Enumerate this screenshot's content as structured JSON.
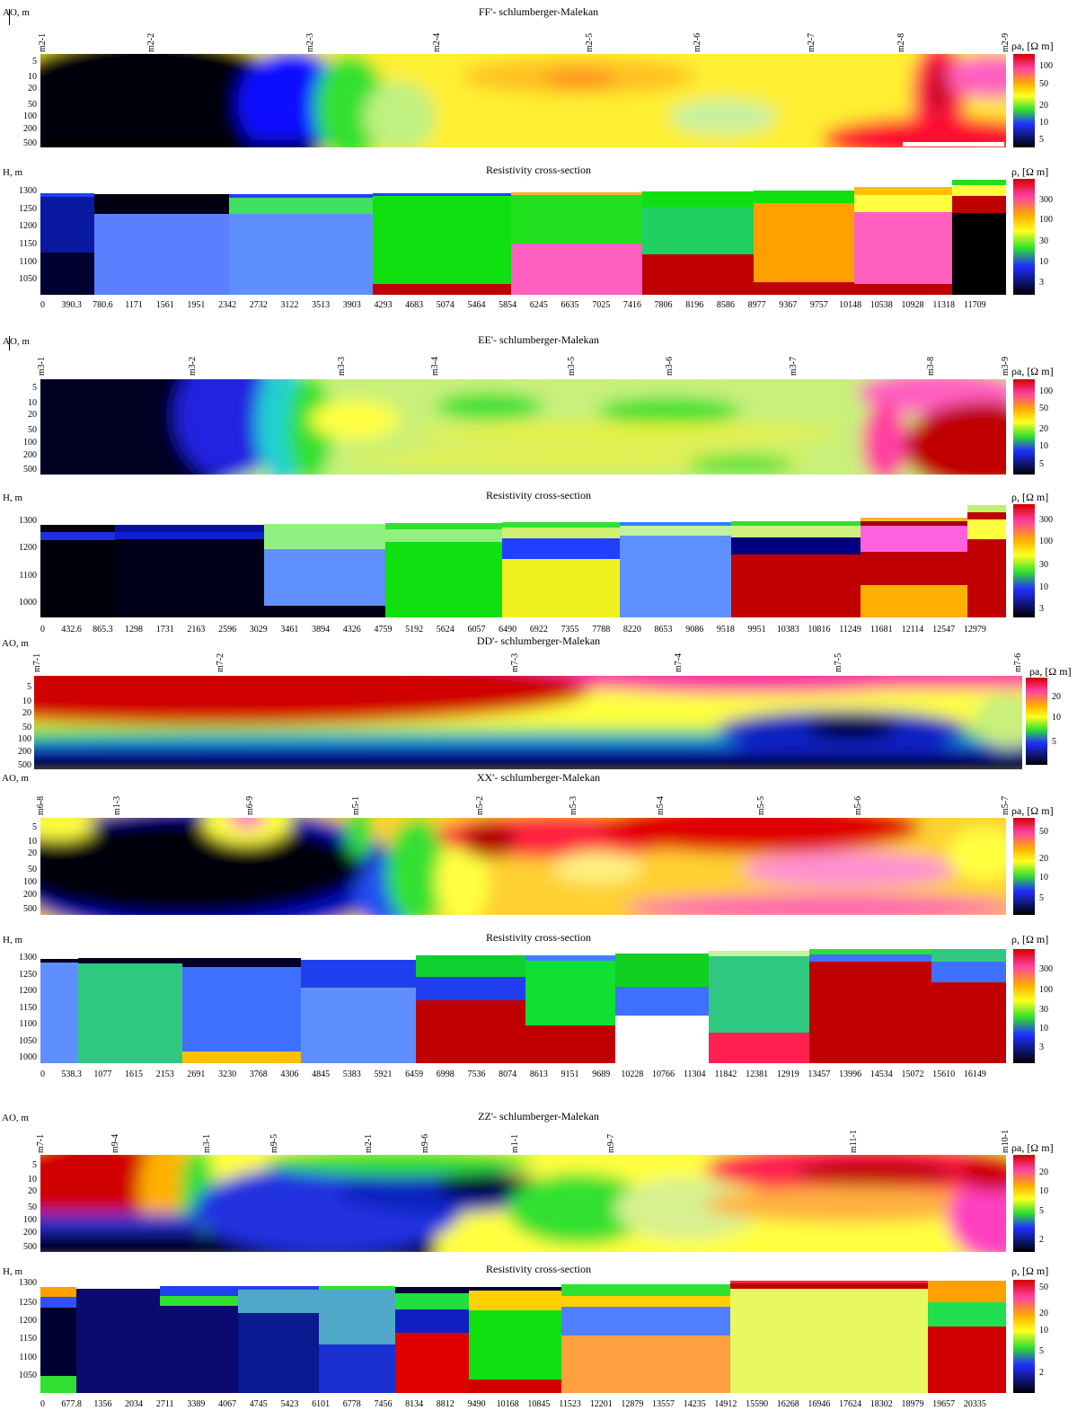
{
  "panels": {
    "ff": {
      "title": "FF'- schlumberger-Malekan",
      "y_label": "AO, m",
      "colorbar_label": "ρa, [Ω m]",
      "y_ticks": [
        "5",
        "10",
        "20",
        "50",
        "100",
        "200",
        "500"
      ],
      "stations": [
        "m2-1",
        "m2-2",
        "m2-3",
        "m2-4",
        "m2-5",
        "m2-6",
        "m2-7",
        "m2-8",
        "m2-9"
      ],
      "colorbar_ticks": [
        "100",
        "50",
        "20",
        "10",
        "5"
      ]
    },
    "ff_section": {
      "title": "Resistivity cross-section",
      "y_label": "H, m",
      "colorbar_label": "ρ, [Ω m]",
      "y_ticks": [
        "1300",
        "1250",
        "1200",
        "1150",
        "1100",
        "1050"
      ],
      "x_ticks": [
        "0",
        "390.3",
        "780.6",
        "1171",
        "1561",
        "1951",
        "2342",
        "2732",
        "3122",
        "3513",
        "3903",
        "4293",
        "4683",
        "5074",
        "5464",
        "5854",
        "6245",
        "6635",
        "7025",
        "7416",
        "7806",
        "8196",
        "8586",
        "8977",
        "9367",
        "9757",
        "10148",
        "10538",
        "10928",
        "11318",
        "11709"
      ],
      "colorbar_ticks": [
        "300",
        "100",
        "30",
        "10",
        "3"
      ]
    },
    "ee": {
      "title": "EE'- schlumberger-Malekan",
      "y_label": "AO, m",
      "colorbar_label": "ρa, [Ω m]",
      "y_ticks": [
        "5",
        "10",
        "20",
        "50",
        "100",
        "200",
        "500"
      ],
      "stations": [
        "m3-1",
        "m3-2",
        "m3-3",
        "m3-4",
        "m3-5",
        "m3-6",
        "m3-7",
        "m3-8",
        "m3-9"
      ],
      "colorbar_ticks": [
        "100",
        "50",
        "20",
        "10",
        "5"
      ]
    },
    "ee_section": {
      "title": "Resistivity cross-section",
      "y_label": "H, m",
      "colorbar_label": "ρ, [Ω m]",
      "y_ticks": [
        "1300",
        "1200",
        "1100",
        "1000"
      ],
      "x_ticks": [
        "0",
        "432.6",
        "865.3",
        "1298",
        "1731",
        "2163",
        "2596",
        "3029",
        "3461",
        "3894",
        "4326",
        "4759",
        "5192",
        "5624",
        "6057",
        "6490",
        "6922",
        "7355",
        "7788",
        "8220",
        "8653",
        "9086",
        "9518",
        "9951",
        "10383",
        "10816",
        "11249",
        "11681",
        "12114",
        "12547",
        "12979"
      ],
      "colorbar_ticks": [
        "300",
        "100",
        "30",
        "10",
        "3"
      ]
    },
    "dd": {
      "title": "DD'- schlumberger-Malekan",
      "y_label": "AO, m",
      "colorbar_label": "ρa, [Ω m]",
      "y_ticks": [
        "5",
        "10",
        "20",
        "50",
        "100",
        "200",
        "500"
      ],
      "stations": [
        "m7-1",
        "m7-2",
        "m7-3",
        "m7-4",
        "m7-5",
        "m7-6"
      ],
      "colorbar_ticks": [
        "20",
        "10",
        "5"
      ]
    },
    "xx": {
      "title": "XX'- schlumberger-Malekan",
      "y_label": "AO, m",
      "colorbar_label": "ρa, [Ω m]",
      "y_ticks": [
        "5",
        "10",
        "20",
        "50",
        "100",
        "200",
        "500"
      ],
      "stations": [
        "m6-8",
        "m1-3",
        "m6-9",
        "m5-1",
        "m5-2",
        "m5-3",
        "m5-4",
        "m5-5",
        "m5-6",
        "m5-7"
      ],
      "colorbar_ticks": [
        "50",
        "20",
        "10",
        "5"
      ]
    },
    "xx_section": {
      "title": "Resistivity cross-section",
      "y_label": "H, m",
      "colorbar_label": "ρ, [Ω m]",
      "y_ticks": [
        "1300",
        "1250",
        "1200",
        "1150",
        "1100",
        "1050",
        "1000"
      ],
      "x_ticks": [
        "0",
        "538.3",
        "1077",
        "1615",
        "2153",
        "2691",
        "3230",
        "3768",
        "4306",
        "4845",
        "5383",
        "5921",
        "6459",
        "6998",
        "7536",
        "8074",
        "8613",
        "9151",
        "9689",
        "10228",
        "10766",
        "11304",
        "11842",
        "12381",
        "12919",
        "13457",
        "13996",
        "14534",
        "15072",
        "15610",
        "16149"
      ],
      "colorbar_ticks": [
        "300",
        "100",
        "30",
        "10",
        "3"
      ]
    },
    "zz": {
      "title": "ZZ'- schlumberger-Malekan",
      "y_label": "AO, m",
      "colorbar_label": "ρa, [Ω m]",
      "y_ticks": [
        "5",
        "10",
        "20",
        "50",
        "100",
        "200",
        "500"
      ],
      "stations": [
        "m7-1",
        "m9-4",
        "m3-1",
        "m9-5",
        "m2-1",
        "m9-6",
        "m1-1",
        "m9-7",
        "m11-1",
        "m10-1"
      ],
      "colorbar_ticks": [
        "20",
        "10",
        "5",
        "2"
      ]
    },
    "zz_section": {
      "title": "Resistivity cross-section",
      "y_label": "H, m",
      "colorbar_label": "ρ, [Ω m]",
      "y_ticks": [
        "1300",
        "1250",
        "1200",
        "1150",
        "1100",
        "1050"
      ],
      "x_ticks": [
        "0",
        "677.8",
        "1356",
        "2034",
        "2711",
        "3389",
        "4067",
        "4745",
        "5423",
        "6101",
        "6778",
        "7456",
        "8134",
        "8812",
        "9490",
        "10168",
        "10845",
        "11523",
        "12201",
        "12879",
        "13557",
        "14235",
        "14912",
        "15590",
        "16268",
        "16946",
        "17624",
        "18302",
        "18979",
        "19657",
        "20335"
      ],
      "colorbar_ticks": [
        "50",
        "20",
        "10",
        "5",
        "2"
      ]
    }
  }
}
